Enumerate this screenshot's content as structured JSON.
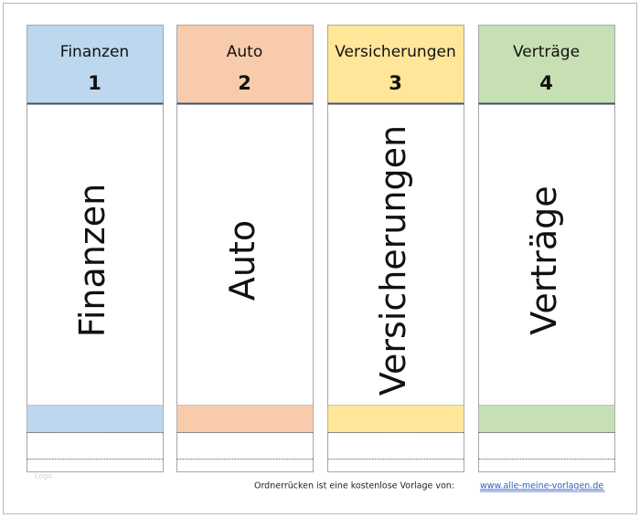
{
  "columns": [
    {
      "title": "Finanzen",
      "number": 1,
      "spine_label": "Finanzen"
    },
    {
      "title": "Auto",
      "number": 2,
      "spine_label": "Auto"
    },
    {
      "title": "Versicherungen",
      "number": 3,
      "spine_label": "Versicherungen"
    },
    {
      "title": "Verträge",
      "number": 4,
      "spine_label": "Verträge"
    }
  ],
  "logo": "Logo",
  "footer": {
    "text": "Ordnerrücken ist eine kostenlose Vorlage von:",
    "link": "www.alle-meine-vorlagen.de"
  }
}
